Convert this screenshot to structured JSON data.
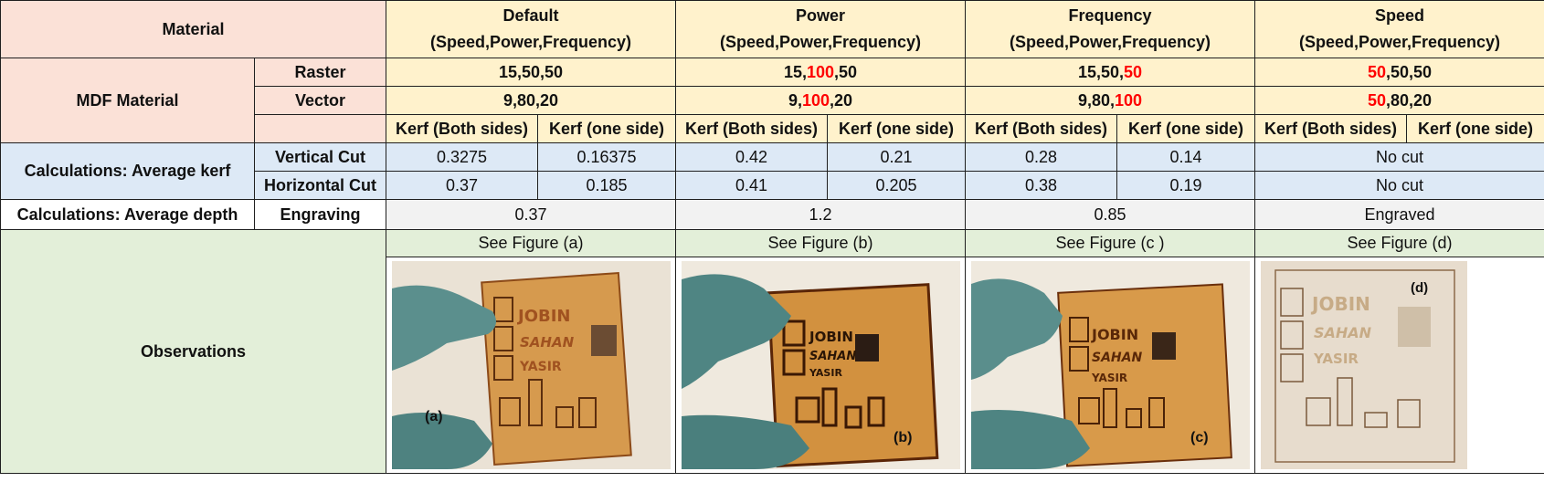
{
  "header": {
    "material_label": "Material",
    "columns": [
      {
        "title": "Default",
        "subtitle": "(Speed,Power,Frequency)"
      },
      {
        "title": "Power",
        "subtitle": "(Speed,Power,Frequency)"
      },
      {
        "title": "Frequency",
        "subtitle": "(Speed,Power,Frequency)"
      },
      {
        "title": "Speed",
        "subtitle": "(Speed,Power,Frequency)"
      }
    ]
  },
  "mdf": {
    "label": "MDF Material",
    "raster": {
      "label": "Raster",
      "values": [
        {
          "pre": "15,50,50",
          "hl": "",
          "post": ""
        },
        {
          "pre": "15,",
          "hl": "100",
          "post": ",50"
        },
        {
          "pre": "15,50,",
          "hl": "50",
          "post": ""
        },
        {
          "pre": "",
          "hl": "50",
          "post": ",50,50"
        }
      ]
    },
    "vector": {
      "label": "Vector",
      "values": [
        {
          "pre": "9,80,20",
          "hl": "",
          "post": ""
        },
        {
          "pre": "9,",
          "hl": "100",
          "post": ",20"
        },
        {
          "pre": "9,80,",
          "hl": "100",
          "post": ""
        },
        {
          "pre": "",
          "hl": "50",
          "post": ",80,20"
        }
      ]
    },
    "kerf_both_label": "Kerf (Both sides)",
    "kerf_one_label": "Kerf (one side)"
  },
  "kerf": {
    "label": "Calculations: Average kerf",
    "vertical": {
      "label": "Vertical Cut",
      "values": [
        "0.3275",
        "0.16375",
        "0.42",
        "0.21",
        "0.28",
        "0.14"
      ],
      "speed": "No cut"
    },
    "horizontal": {
      "label": "Horizontal Cut",
      "values": [
        "0.37",
        "0.185",
        "0.41",
        "0.205",
        "0.38",
        "0.19"
      ],
      "speed": "No cut"
    }
  },
  "depth": {
    "label": "Calculations: Average depth",
    "sublabel": "Engraving",
    "values": [
      "0.37",
      "1.2",
      "0.85",
      "Engraved"
    ]
  },
  "observations": {
    "label": "Observations",
    "figure_refs": [
      "See Figure (a)",
      "See Figure (b)",
      "See Figure (c )",
      "See Figure (d)"
    ],
    "photos": [
      {
        "tag": "(a)",
        "engraved_text": [
          "JOBIN",
          "SAHAN",
          "YASIR"
        ]
      },
      {
        "tag": "(b)",
        "engraved_text": [
          "JOBIN",
          "SAHAN",
          "YASIR"
        ]
      },
      {
        "tag": "(c)",
        "engraved_text": [
          "JOBIN",
          "SAHAN",
          "YASIR"
        ]
      },
      {
        "tag": "(d)",
        "engraved_text": [
          "JOBIN",
          "SAHAN",
          "YASIR"
        ]
      }
    ]
  },
  "colors": {
    "header_material": "#fbe1d7",
    "header_params": "#fff2cc",
    "kerf_rows": "#dde9f6",
    "depth_row": "#f2f2f2",
    "observations": "#e3efd9",
    "highlight": "#ff0000"
  }
}
